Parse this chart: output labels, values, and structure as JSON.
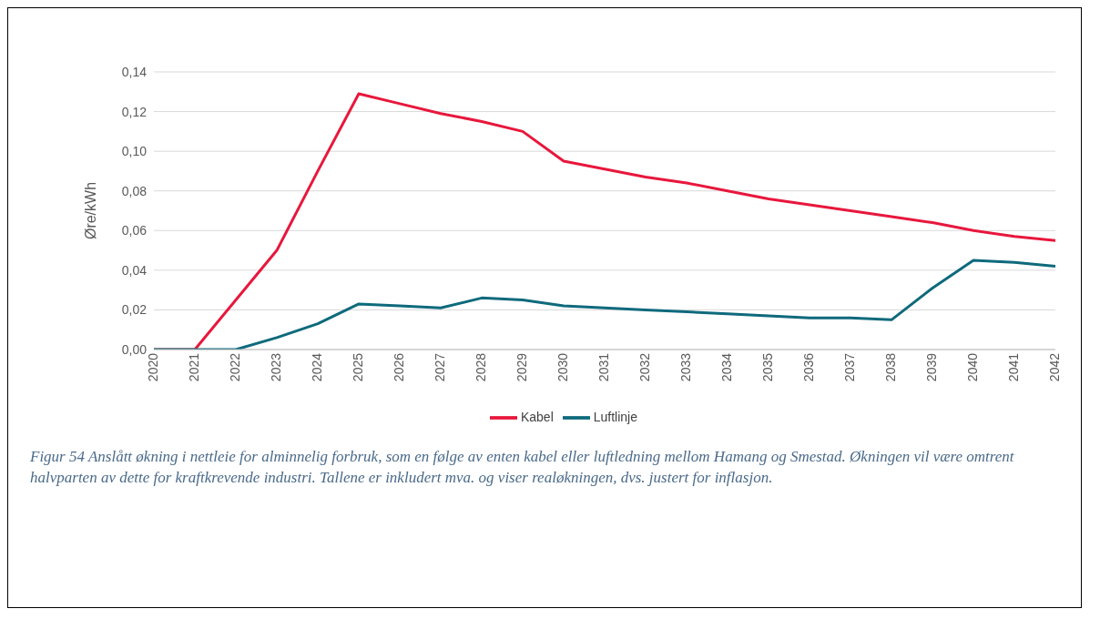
{
  "chart_data": {
    "type": "line",
    "ylabel": "Øre/kWh",
    "categories": [
      "2020",
      "2021",
      "2022",
      "2023",
      "2024",
      "2025",
      "2026",
      "2027",
      "2028",
      "2029",
      "2030",
      "2031",
      "2032",
      "2033",
      "2034",
      "2035",
      "2036",
      "2037",
      "2038",
      "2039",
      "2040",
      "2041",
      "2042"
    ],
    "series": [
      {
        "name": "Kabel",
        "color": "#e8173c",
        "values": [
          0,
          0,
          0.025,
          0.05,
          0.09,
          0.129,
          0.124,
          0.119,
          0.115,
          0.11,
          0.095,
          0.091,
          0.087,
          0.084,
          0.08,
          0.076,
          0.073,
          0.07,
          0.067,
          0.064,
          0.06,
          0.057,
          0.055
        ]
      },
      {
        "name": "Luftlinje",
        "color": "#0e6a7c",
        "values": [
          0,
          0,
          0,
          0.006,
          0.013,
          0.023,
          0.022,
          0.021,
          0.026,
          0.025,
          0.022,
          0.021,
          0.02,
          0.019,
          0.018,
          0.017,
          0.016,
          0.016,
          0.015,
          0.031,
          0.045,
          0.044,
          0.042
        ]
      }
    ],
    "ylim": [
      0,
      0.14
    ],
    "yticks": [
      {
        "value": 0,
        "label": "0,00"
      },
      {
        "value": 0.02,
        "label": "0,02"
      },
      {
        "value": 0.04,
        "label": "0,04"
      },
      {
        "value": 0.06,
        "label": "0,06"
      },
      {
        "value": 0.08,
        "label": "0,08"
      },
      {
        "value": 0.1,
        "label": "0,10"
      },
      {
        "value": 0.12,
        "label": "0,12"
      },
      {
        "value": 0.14,
        "label": "0,14"
      }
    ],
    "grid": "y",
    "legend": "bottom",
    "marker": "none",
    "line_style": "solid",
    "annotations": [
      "Figur 54 Anslått økning i nettleie for alminnelig forbruk, som en følge av enten kabel eller luftledning mellom Hamang og Smestad. Økningen vil være omtrent halvparten av dette for kraftkrevende industri. Tallene er inkludert mva. og viser realøkningen, dvs. justert for inflasjon."
    ]
  }
}
